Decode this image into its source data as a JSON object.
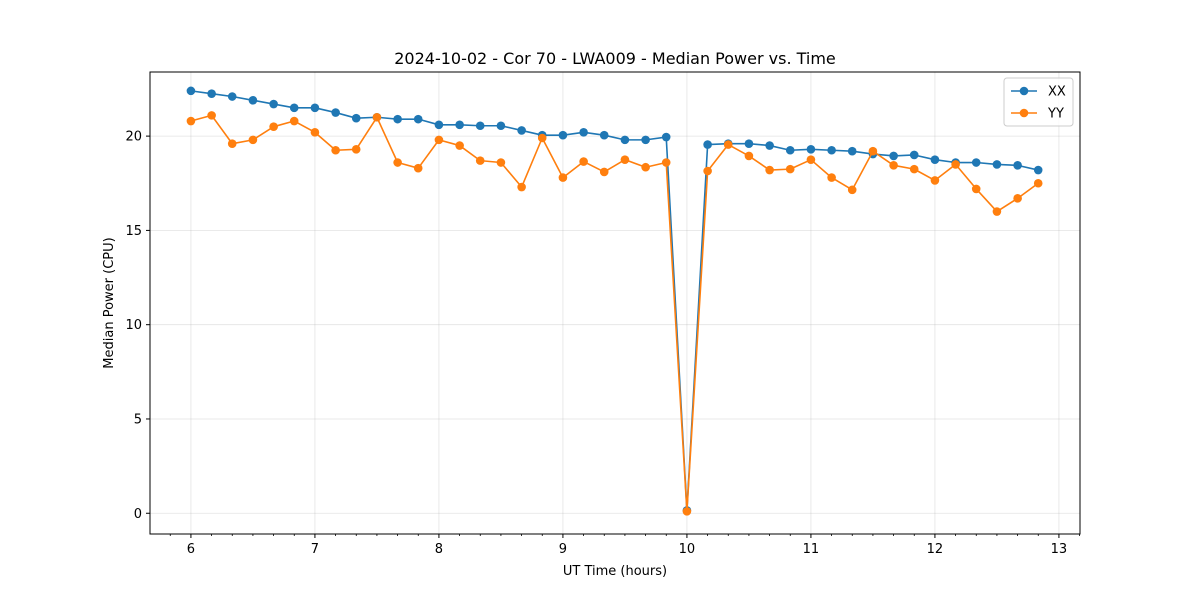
{
  "chart_data": {
    "type": "line",
    "title": "2024-10-02 - Cor 70 - LWA009 - Median Power vs. Time",
    "xlabel": "UT Time (hours)",
    "ylabel": "Median Power (CPU)",
    "xlim": [
      5.67,
      13.17
    ],
    "ylim": [
      -1.1,
      23.4
    ],
    "xticks": [
      6,
      7,
      8,
      9,
      10,
      11,
      12,
      13
    ],
    "yticks": [
      0,
      5,
      10,
      15,
      20
    ],
    "grid": true,
    "legend_position": "top-right",
    "x": [
      6.0,
      6.167,
      6.333,
      6.5,
      6.667,
      6.833,
      7.0,
      7.167,
      7.333,
      7.5,
      7.667,
      7.833,
      8.0,
      8.167,
      8.333,
      8.5,
      8.667,
      8.833,
      9.0,
      9.167,
      9.333,
      9.5,
      9.667,
      9.833,
      10.0,
      10.167,
      10.333,
      10.5,
      10.667,
      10.833,
      11.0,
      11.167,
      11.333,
      11.5,
      11.667,
      11.833,
      12.0,
      12.167,
      12.333,
      12.5,
      12.667,
      12.833
    ],
    "series": [
      {
        "name": "XX",
        "color": "#1f77b4",
        "values": [
          22.4,
          22.25,
          22.1,
          21.9,
          21.7,
          21.5,
          21.5,
          21.25,
          20.95,
          21.0,
          20.9,
          20.9,
          20.6,
          20.6,
          20.55,
          20.55,
          20.3,
          20.05,
          20.05,
          20.2,
          20.05,
          19.8,
          19.8,
          19.95,
          0.15,
          19.55,
          19.6,
          19.6,
          19.5,
          19.25,
          19.3,
          19.25,
          19.2,
          19.05,
          18.95,
          19.0,
          18.75,
          18.6,
          18.6,
          18.5,
          18.45,
          18.2
        ]
      },
      {
        "name": "YY",
        "color": "#ff7f0e",
        "values": [
          20.8,
          21.1,
          19.6,
          19.8,
          20.5,
          20.8,
          20.2,
          19.25,
          19.3,
          21.0,
          18.6,
          18.3,
          19.8,
          19.5,
          18.7,
          18.6,
          17.3,
          19.9,
          17.8,
          18.65,
          18.1,
          18.75,
          18.35,
          18.6,
          0.1,
          18.15,
          19.55,
          18.95,
          18.2,
          18.25,
          18.75,
          17.8,
          17.15,
          19.2,
          18.45,
          18.25,
          17.65,
          18.5,
          17.2,
          16.0,
          16.7,
          17.5
        ]
      }
    ]
  }
}
